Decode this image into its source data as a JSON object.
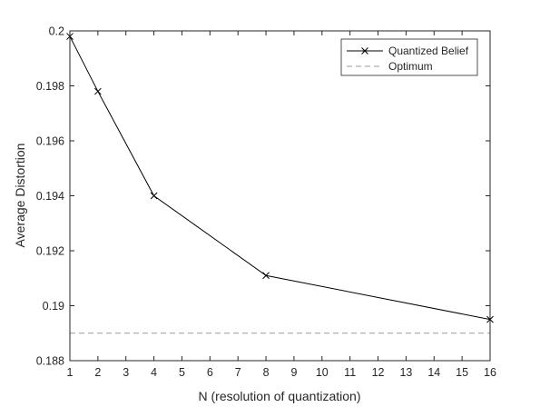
{
  "chart_data": {
    "type": "line",
    "xlabel": "N (resolution of quantization)",
    "ylabel": "Average Distortion",
    "xlim": [
      1,
      16
    ],
    "ylim": [
      0.188,
      0.2
    ],
    "x_ticks": [
      1,
      2,
      3,
      4,
      5,
      6,
      7,
      8,
      9,
      10,
      11,
      12,
      13,
      14,
      15,
      16
    ],
    "y_ticks": [
      0.188,
      0.19,
      0.192,
      0.194,
      0.196,
      0.198,
      0.2
    ],
    "x_tick_labels": [
      "1",
      "2",
      "3",
      "4",
      "5",
      "6",
      "7",
      "8",
      "9",
      "10",
      "11",
      "12",
      "13",
      "14",
      "15",
      "16"
    ],
    "y_tick_labels": [
      "0.188",
      "0.19",
      "0.192",
      "0.194",
      "0.196",
      "0.198",
      "0.2"
    ],
    "grid": false,
    "legend_position": "top-right",
    "series": [
      {
        "name": "Quantized Belief",
        "style": "solid",
        "marker": "x",
        "color": "#000000",
        "x": [
          1,
          2,
          4,
          8,
          16
        ],
        "y": [
          0.1998,
          0.1978,
          0.194,
          0.1911,
          0.1895
        ]
      },
      {
        "name": "Optimum",
        "style": "dashed",
        "marker": "none",
        "color": "#9a9a9a",
        "x": [
          1,
          16
        ],
        "y": [
          0.189,
          0.189
        ]
      }
    ]
  }
}
